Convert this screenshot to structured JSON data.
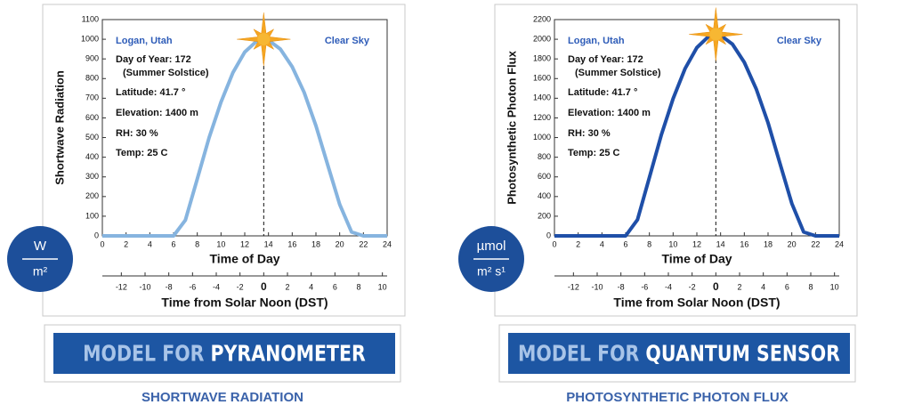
{
  "chart_data": [
    {
      "type": "line",
      "ylabel": "Shortwave Radiation",
      "xlabel": "Time of Day",
      "x2label": "Time from Solar Noon (DST)",
      "location": "Logan, Utah",
      "sky": "Clear Sky",
      "notes": [
        "Day of Year: 172",
        "(Summer Solstice)",
        "Latitude: 41.7 °",
        "Elevation: 1400 m",
        "RH: 30 %",
        "Temp: 25 C"
      ],
      "unit": [
        "W",
        "m²"
      ],
      "banner": [
        "MODEL FOR",
        "PYRANOMETER"
      ],
      "caption": "SHORTWAVE RADIATION",
      "color": "#86b4df",
      "x": [
        0,
        1,
        2,
        3,
        4,
        5,
        6,
        7,
        8,
        9,
        10,
        11,
        12,
        13,
        13.6,
        14,
        15,
        16,
        17,
        18,
        19,
        20,
        21,
        22,
        23,
        24
      ],
      "values": [
        0,
        0,
        0,
        0,
        0,
        0,
        0,
        80,
        290,
        500,
        680,
        830,
        935,
        990,
        1000,
        995,
        950,
        860,
        730,
        560,
        360,
        160,
        20,
        0,
        0,
        0
      ],
      "xlim": [
        0,
        24
      ],
      "xticks": [
        0,
        2,
        4,
        6,
        8,
        10,
        12,
        14,
        16,
        18,
        20,
        22,
        24
      ],
      "x2lim": [
        -13.6,
        10.4
      ],
      "x2ticks": [
        -12,
        -10,
        -8,
        -6,
        -4,
        -2,
        0,
        2,
        4,
        6,
        8,
        10
      ],
      "ylim": [
        0,
        1100
      ],
      "yticks": [
        0,
        100,
        200,
        300,
        400,
        500,
        600,
        700,
        800,
        900,
        1000,
        1100
      ]
    },
    {
      "type": "line",
      "ylabel": "Photosynthetic Photon Flux",
      "xlabel": "Time of Day",
      "x2label": "Time from Solar Noon (DST)",
      "location": "Logan, Utah",
      "sky": "Clear Sky",
      "notes": [
        "Day of Year: 172",
        "(Summer Solstice)",
        "Latitude: 41.7 °",
        "Elevation: 1400 m",
        "RH: 30 %",
        "Temp: 25 C"
      ],
      "unit": [
        "µmol",
        "m² s¹"
      ],
      "banner": [
        "MODEL FOR",
        "QUANTUM SENSOR"
      ],
      "caption": "PHOTOSYNTHETIC PHOTON FLUX",
      "color": "#1f4fa8",
      "x": [
        0,
        1,
        2,
        3,
        4,
        5,
        6,
        7,
        8,
        9,
        10,
        11,
        12,
        13,
        13.6,
        14,
        15,
        16,
        17,
        18,
        19,
        20,
        21,
        22,
        23,
        24
      ],
      "values": [
        0,
        0,
        0,
        0,
        0,
        0,
        0,
        165,
        595,
        1025,
        1395,
        1700,
        1915,
        2030,
        2050,
        2040,
        1950,
        1765,
        1495,
        1150,
        740,
        330,
        40,
        0,
        0,
        0
      ],
      "xlim": [
        0,
        24
      ],
      "xticks": [
        0,
        2,
        4,
        6,
        8,
        10,
        12,
        14,
        16,
        18,
        20,
        22,
        24
      ],
      "x2lim": [
        -13.6,
        10.4
      ],
      "x2ticks": [
        -12,
        -10,
        -8,
        -6,
        -4,
        -2,
        0,
        2,
        4,
        6,
        8,
        10
      ],
      "ylim": [
        0,
        2200
      ],
      "yticks": [
        0,
        200,
        400,
        600,
        800,
        1000,
        1200,
        1400,
        1600,
        1800,
        2000,
        2200
      ]
    }
  ]
}
